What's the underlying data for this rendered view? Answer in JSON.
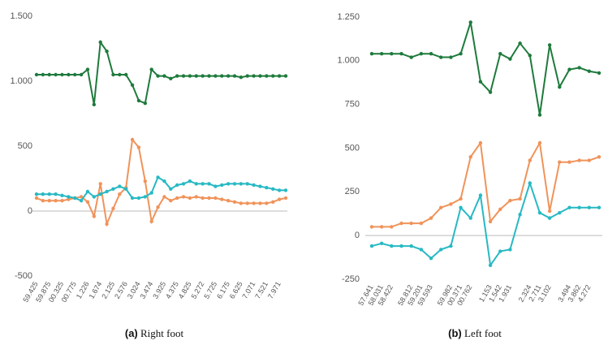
{
  "chart_data": [
    {
      "type": "line",
      "caption_label": "(a)",
      "caption": "Right foot",
      "categories": [
        "59.425",
        null,
        "59.875",
        null,
        "00.325",
        null,
        "00.775",
        null,
        "1.226",
        null,
        "1.674",
        null,
        "2.125",
        null,
        "2.576",
        null,
        "3.024",
        null,
        "3.474",
        null,
        "3.925",
        null,
        "4.375",
        null,
        "4.825",
        null,
        "5.272",
        null,
        "5.725",
        null,
        "6.175",
        null,
        "6.625",
        null,
        "7.071",
        null,
        "7.521",
        null,
        "7.971",
        null
      ],
      "series": [
        {
          "color": "#1e7a3c",
          "values": [
            1050,
            1050,
            1050,
            1050,
            1050,
            1050,
            1050,
            1050,
            1090,
            820,
            1300,
            1230,
            1050,
            1050,
            1050,
            970,
            850,
            830,
            1090,
            1040,
            1040,
            1020,
            1040,
            1040,
            1040,
            1040,
            1040,
            1040,
            1040,
            1040,
            1040,
            1040,
            1030,
            1040,
            1040,
            1040,
            1040,
            1040,
            1040,
            1040
          ]
        },
        {
          "color": "#f0935a",
          "values": [
            100,
            80,
            80,
            80,
            80,
            90,
            100,
            110,
            70,
            -40,
            210,
            -100,
            20,
            130,
            180,
            550,
            490,
            230,
            -80,
            30,
            110,
            80,
            100,
            110,
            100,
            110,
            100,
            100,
            100,
            90,
            80,
            70,
            60,
            60,
            60,
            60,
            60,
            70,
            90,
            100
          ]
        },
        {
          "color": "#27b9c4",
          "values": [
            130,
            130,
            130,
            130,
            120,
            110,
            100,
            80,
            150,
            110,
            130,
            150,
            170,
            190,
            170,
            100,
            100,
            110,
            140,
            260,
            230,
            170,
            200,
            210,
            230,
            210,
            210,
            210,
            190,
            200,
            210,
            210,
            210,
            210,
            200,
            190,
            180,
            170,
            160,
            160
          ]
        }
      ],
      "ylim": [
        -500,
        1500
      ],
      "yticks": [
        -500,
        0,
        500,
        {
          "value": 1000,
          "label": "1.000"
        },
        {
          "value": 1500,
          "label": "1.500"
        }
      ]
    },
    {
      "type": "line",
      "caption_label": "(b)",
      "caption": "Left foot",
      "categories": [
        "57.641",
        "58.031",
        "58.422",
        null,
        "58.812",
        "59.201",
        "59.593",
        null,
        "59.982",
        "00.371",
        "00.762",
        null,
        "1.153",
        "1.542",
        "1.931",
        null,
        "2.324",
        "2.711",
        "3.102",
        null,
        "3.494",
        "3.862",
        "4.272",
        null
      ],
      "series": [
        {
          "color": "#1e7a3c",
          "values": [
            1040,
            1040,
            1040,
            1040,
            1020,
            1040,
            1040,
            1020,
            1020,
            1040,
            1220,
            880,
            820,
            1040,
            1010,
            1100,
            1030,
            690,
            1090,
            850,
            950,
            960,
            940,
            930
          ]
        },
        {
          "color": "#f0935a",
          "values": [
            50,
            50,
            50,
            70,
            70,
            70,
            100,
            160,
            180,
            210,
            450,
            530,
            80,
            150,
            200,
            210,
            430,
            530,
            140,
            420,
            420,
            430,
            430,
            450
          ]
        },
        {
          "color": "#27b9c4",
          "values": [
            -60,
            -45,
            -60,
            -60,
            -60,
            -80,
            -130,
            -80,
            -60,
            160,
            100,
            230,
            -170,
            -90,
            -80,
            120,
            300,
            130,
            100,
            130,
            160,
            160,
            160,
            160
          ]
        }
      ],
      "ylim": [
        -250,
        1250
      ],
      "yticks": [
        -250,
        0,
        250,
        500,
        750,
        {
          "value": 1000,
          "label": "1.000"
        },
        {
          "value": 1250,
          "label": "1.250"
        }
      ]
    }
  ]
}
